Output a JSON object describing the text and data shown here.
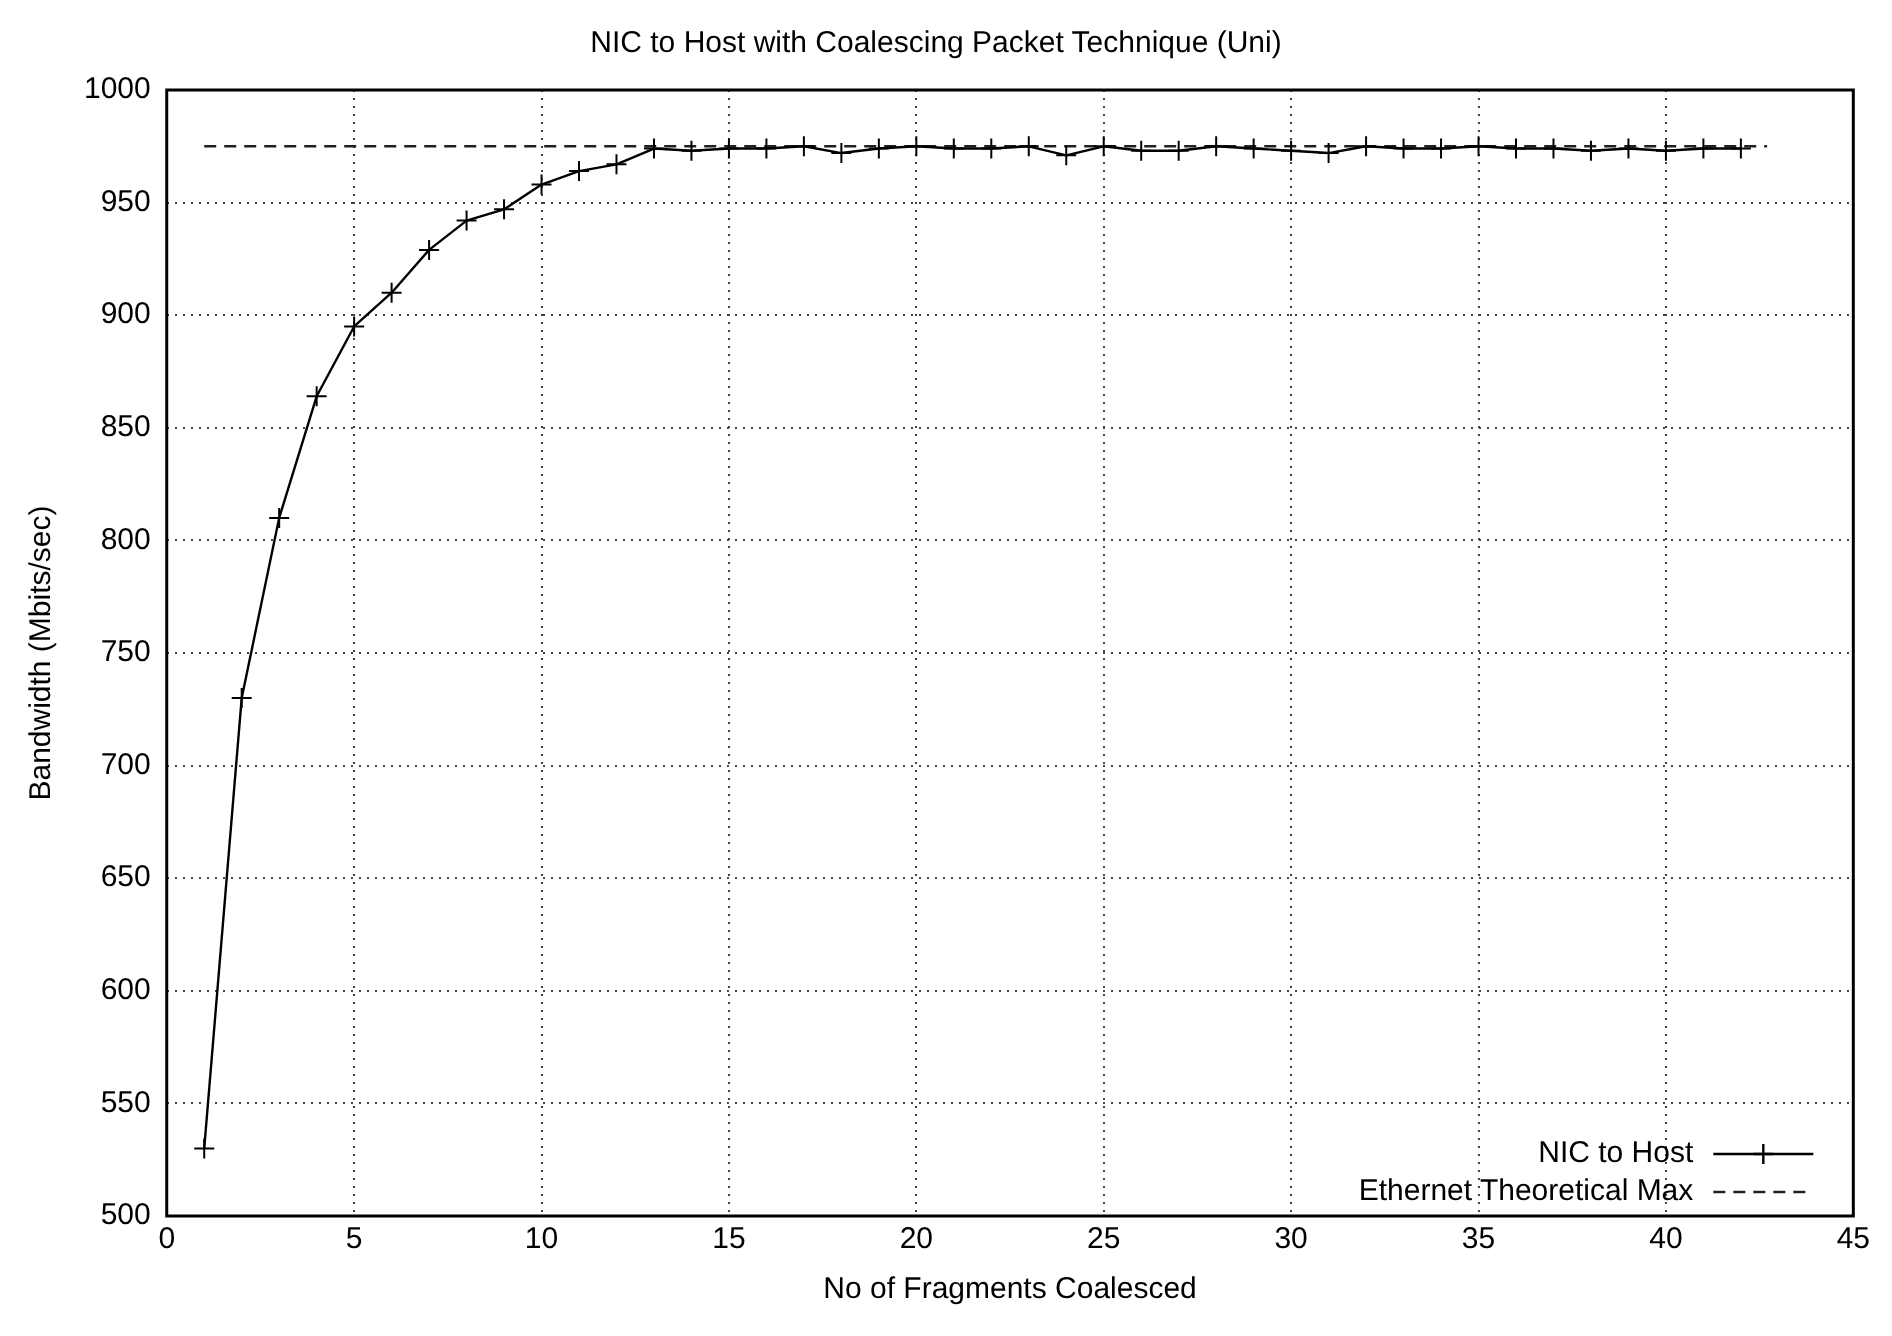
{
  "chart_data": {
    "type": "line",
    "title": "NIC to Host with Coalescing Packet Technique (Uni)",
    "xlabel": "No of Fragments Coalesced",
    "ylabel": "Bandwidth (Mbits/sec)",
    "xlim": [
      0,
      45
    ],
    "xticks": [
      0,
      5,
      10,
      15,
      20,
      25,
      30,
      35,
      40,
      45
    ],
    "ylim": [
      500,
      1000
    ],
    "yticks": [
      500,
      550,
      600,
      650,
      700,
      750,
      800,
      850,
      900,
      950,
      1000
    ],
    "grid": true,
    "legend": "bottom right",
    "series": [
      {
        "name": "NIC to Host",
        "color": "#000000",
        "marker": "cross",
        "line_style": "solid",
        "x": [
          1,
          2,
          3,
          4,
          5,
          6,
          7,
          8,
          9,
          10,
          11,
          12,
          13,
          14,
          15,
          16,
          17,
          18,
          19,
          20,
          21,
          22,
          23,
          24,
          25,
          26,
          27,
          28,
          29,
          30,
          31,
          32,
          33,
          34,
          35,
          36,
          37,
          38,
          39,
          40,
          41,
          42
        ],
        "values": [
          530,
          730,
          810,
          864,
          895,
          910,
          929,
          942,
          947,
          958,
          964,
          967,
          974,
          973,
          974,
          974,
          975,
          972,
          974,
          975,
          974,
          974,
          975,
          971,
          975,
          973,
          973,
          975,
          974,
          973,
          972,
          975,
          974,
          974,
          975,
          974,
          974,
          973,
          974,
          973,
          974,
          974
        ]
      },
      {
        "name": "Ethernet Theoretical Max",
        "color": "#202020",
        "marker": "none",
        "line_style": "dashed",
        "x": [
          1,
          42.7
        ],
        "values": [
          975,
          975
        ]
      }
    ]
  }
}
